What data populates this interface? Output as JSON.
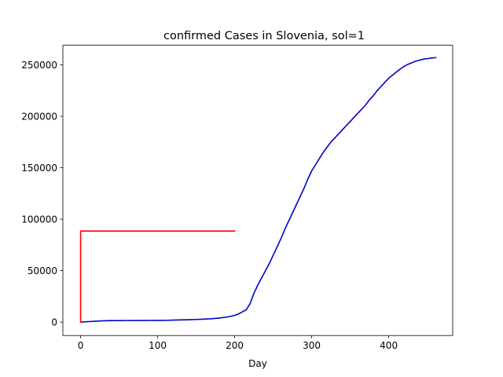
{
  "chart_data": {
    "type": "line",
    "title": "confirmed Cases in Slovenia, sol=1",
    "xlabel": "Day",
    "ylabel": "",
    "xlim": [
      -23,
      483
    ],
    "ylim": [
      -13000,
      269000
    ],
    "xticks": [
      0,
      100,
      200,
      300,
      400
    ],
    "yticks": [
      0,
      50000,
      100000,
      150000,
      200000,
      250000
    ],
    "grid": false,
    "series": [
      {
        "color": "#0000cc",
        "x": [
          0,
          10,
          20,
          30,
          40,
          50,
          60,
          70,
          80,
          90,
          100,
          110,
          120,
          130,
          140,
          150,
          160,
          170,
          180,
          190,
          200,
          205,
          210,
          215,
          220,
          225,
          230,
          235,
          240,
          245,
          250,
          255,
          260,
          265,
          270,
          275,
          280,
          285,
          290,
          295,
          300,
          305,
          310,
          315,
          320,
          325,
          330,
          335,
          340,
          345,
          350,
          355,
          360,
          365,
          370,
          375,
          380,
          385,
          390,
          395,
          400,
          405,
          410,
          415,
          420,
          425,
          430,
          435,
          440,
          445,
          450,
          455,
          461
        ],
        "y": [
          0,
          500,
          900,
          1300,
          1500,
          1500,
          1550,
          1600,
          1600,
          1650,
          1700,
          1750,
          2000,
          2200,
          2400,
          2600,
          2900,
          3300,
          4000,
          5000,
          6500,
          8000,
          10000,
          12000,
          18000,
          28000,
          36000,
          43000,
          50000,
          57000,
          65000,
          73000,
          81000,
          90000,
          98000,
          106000,
          114000,
          122000,
          130000,
          139000,
          147000,
          153000,
          159000,
          165000,
          170000,
          175000,
          179000,
          183000,
          187000,
          191000,
          195000,
          199000,
          203000,
          207000,
          211000,
          216000,
          220000,
          225000,
          229000,
          233000,
          237000,
          240000,
          243000,
          246000,
          248500,
          250500,
          252000,
          253500,
          254500,
          255500,
          256000,
          256500,
          257000
        ]
      },
      {
        "color": "#ff0000",
        "x": [
          0,
          0,
          200
        ],
        "y": [
          0,
          88500,
          88500
        ]
      }
    ]
  }
}
